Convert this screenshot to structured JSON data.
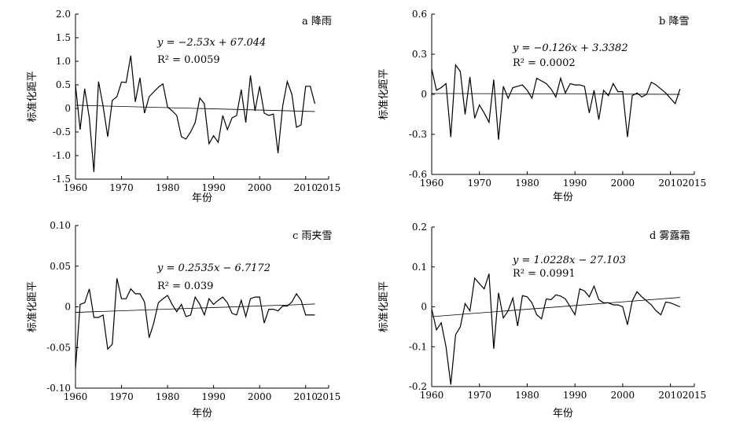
{
  "chart_data": [
    {
      "type": "line",
      "panel_label": "a",
      "title": "降雨",
      "xlabel": "年份",
      "ylabel": "标准化距平",
      "xlim": [
        1960,
        2015
      ],
      "ylim": [
        -1.5,
        2.0
      ],
      "xticks": [
        "1960",
        "1970",
        "1980",
        "1990",
        "2000",
        "2010",
        "2015"
      ],
      "yticks": [
        "2.0",
        "1.5",
        "1.0",
        "0.5",
        "0",
        "-0.5",
        "-1.0",
        "-1.5"
      ],
      "equation": "y = −2.53x + 67.044",
      "r2": "R² = 0.0059",
      "trend": {
        "slope": -2.53,
        "intercept": 67.044
      },
      "x": [
        1960,
        1961,
        1962,
        1963,
        1964,
        1965,
        1966,
        1967,
        1968,
        1969,
        1970,
        1971,
        1972,
        1973,
        1974,
        1975,
        1976,
        1977,
        1978,
        1979,
        1980,
        1981,
        1982,
        1983,
        1984,
        1985,
        1986,
        1987,
        1988,
        1989,
        1990,
        1991,
        1992,
        1993,
        1994,
        1995,
        1996,
        1997,
        1998,
        1999,
        2000,
        2001,
        2002,
        2003,
        2004,
        2005,
        2006,
        2007,
        2008,
        2009,
        2010,
        2011,
        2012
      ],
      "values": [
        0.5,
        -0.45,
        0.42,
        -0.2,
        -1.35,
        0.57,
        0.05,
        -0.6,
        0.17,
        0.25,
        0.56,
        0.55,
        1.12,
        0.14,
        0.65,
        -0.1,
        0.25,
        0.35,
        0.45,
        0.52,
        0.03,
        -0.05,
        -0.15,
        -0.6,
        -0.65,
        -0.5,
        -0.3,
        0.22,
        0.1,
        -0.75,
        -0.58,
        -0.72,
        -0.15,
        -0.45,
        -0.2,
        -0.15,
        0.4,
        -0.3,
        0.7,
        -0.05,
        0.47,
        -0.1,
        -0.15,
        -0.12,
        -0.95,
        0.05,
        0.57,
        0.3,
        -0.4,
        -0.35,
        0.47,
        0.47,
        0.1
      ]
    },
    {
      "type": "line",
      "panel_label": "b",
      "title": "降雪",
      "xlabel": "年份",
      "ylabel": "标准化距平",
      "xlim": [
        1960,
        2015
      ],
      "ylim": [
        -0.6,
        0.6
      ],
      "xticks": [
        "1960",
        "1970",
        "1980",
        "1990",
        "2000",
        "2010",
        "2015"
      ],
      "yticks": [
        "0.6",
        "0.3",
        "0",
        "-0.3",
        "-0.6"
      ],
      "equation": "y = −0.126x + 3.3382",
      "r2": "R² = 0.0002",
      "trend": {
        "slope": -0.126,
        "intercept": 3.3382
      },
      "x": [
        1960,
        1961,
        1962,
        1963,
        1964,
        1965,
        1966,
        1967,
        1968,
        1969,
        1970,
        1971,
        1972,
        1973,
        1974,
        1975,
        1976,
        1977,
        1978,
        1979,
        1980,
        1981,
        1982,
        1983,
        1984,
        1985,
        1986,
        1987,
        1988,
        1989,
        1990,
        1991,
        1992,
        1993,
        1994,
        1995,
        1996,
        1997,
        1998,
        1999,
        2000,
        2001,
        2002,
        2003,
        2004,
        2005,
        2006,
        2007,
        2008,
        2009,
        2010,
        2011,
        2012
      ],
      "values": [
        0.19,
        0.03,
        0.05,
        0.08,
        -0.32,
        0.22,
        0.17,
        -0.15,
        0.13,
        -0.18,
        -0.08,
        -0.14,
        -0.21,
        0.11,
        -0.34,
        0.06,
        -0.03,
        0.05,
        0.06,
        0.07,
        0.03,
        -0.03,
        0.12,
        0.1,
        0.08,
        0.04,
        -0.02,
        0.12,
        0.01,
        0.08,
        0.07,
        0.07,
        0.06,
        -0.14,
        0.03,
        -0.19,
        0.03,
        -0.01,
        0.08,
        0.02,
        0.02,
        -0.32,
        -0.01,
        0.01,
        -0.02,
        0.0,
        0.09,
        0.07,
        0.04,
        0.01,
        -0.03,
        -0.07,
        0.04
      ]
    },
    {
      "type": "line",
      "panel_label": "c",
      "title": "雨夹雪",
      "xlabel": "年份",
      "ylabel": "标准化距平",
      "xlim": [
        1960,
        2015
      ],
      "ylim": [
        -0.1,
        0.1
      ],
      "xticks": [
        "1960",
        "1970",
        "1980",
        "1990",
        "2000",
        "2010",
        "2015"
      ],
      "yticks": [
        "0.10",
        "0.05",
        "0",
        "-0.05",
        "-0.10"
      ],
      "equation": "y = 0.2535x − 6.7172",
      "r2": "R² = 0.039",
      "trend": {
        "slope": 0.2535,
        "intercept": -6.7172
      },
      "x": [
        1960,
        1961,
        1962,
        1963,
        1964,
        1965,
        1966,
        1967,
        1968,
        1969,
        1970,
        1971,
        1972,
        1973,
        1974,
        1975,
        1976,
        1977,
        1978,
        1979,
        1980,
        1981,
        1982,
        1983,
        1984,
        1985,
        1986,
        1987,
        1988,
        1989,
        1990,
        1991,
        1992,
        1993,
        1994,
        1995,
        1996,
        1997,
        1998,
        1999,
        2000,
        2001,
        2002,
        2003,
        2004,
        2005,
        2006,
        2007,
        2008,
        2009,
        2010,
        2011,
        2012
      ],
      "values": [
        -0.076,
        0.003,
        0.005,
        0.022,
        -0.013,
        -0.013,
        -0.01,
        -0.052,
        -0.046,
        0.035,
        0.01,
        0.01,
        0.022,
        0.016,
        0.016,
        0.006,
        -0.038,
        -0.02,
        0.005,
        0.01,
        0.014,
        0.003,
        -0.006,
        0.003,
        -0.012,
        -0.01,
        0.012,
        0.003,
        -0.01,
        0.01,
        0.003,
        0.008,
        0.012,
        0.005,
        -0.008,
        -0.01,
        0.008,
        -0.012,
        0.01,
        0.012,
        0.012,
        -0.02,
        -0.003,
        -0.003,
        -0.005,
        0.001,
        0.001,
        0.006,
        0.016,
        0.008,
        -0.01,
        -0.01,
        -0.01
      ]
    },
    {
      "type": "line",
      "panel_label": "d",
      "title": "雾露霜",
      "xlabel": "年份",
      "ylabel": "标准化距平",
      "xlim": [
        1960,
        2015
      ],
      "ylim": [
        -0.2,
        0.2
      ],
      "xticks": [
        "1960",
        "1970",
        "1980",
        "1990",
        "2000",
        "2010",
        "2015"
      ],
      "yticks": [
        "0.2",
        "0.1",
        "0",
        "-0.1",
        "-0.2"
      ],
      "equation": "y = 1.0228x − 27.103",
      "r2": "R² = 0.0991",
      "trend": {
        "slope": 1.0228,
        "intercept": -27.103
      },
      "x": [
        1960,
        1961,
        1962,
        1963,
        1964,
        1965,
        1966,
        1967,
        1968,
        1969,
        1970,
        1971,
        1972,
        1973,
        1974,
        1975,
        1976,
        1977,
        1978,
        1979,
        1980,
        1981,
        1982,
        1983,
        1984,
        1985,
        1986,
        1987,
        1988,
        1989,
        1990,
        1991,
        1992,
        1993,
        1994,
        1995,
        1996,
        1997,
        1998,
        1999,
        2000,
        2001,
        2002,
        2003,
        2004,
        2005,
        2006,
        2007,
        2008,
        2009,
        2010,
        2011,
        2012
      ],
      "values": [
        -0.005,
        -0.058,
        -0.04,
        -0.1,
        -0.195,
        -0.07,
        -0.05,
        0.008,
        -0.01,
        0.072,
        0.058,
        0.045,
        0.083,
        -0.105,
        0.035,
        -0.028,
        -0.01,
        0.022,
        -0.048,
        0.028,
        0.025,
        0.01,
        -0.02,
        -0.03,
        0.02,
        0.018,
        0.03,
        0.027,
        0.02,
        0.0,
        -0.02,
        0.045,
        0.04,
        0.025,
        0.052,
        0.018,
        0.01,
        0.01,
        0.005,
        0.005,
        0.0,
        -0.045,
        0.015,
        0.038,
        0.025,
        0.015,
        0.005,
        -0.01,
        -0.02,
        0.012,
        0.01,
        0.005,
        0.0
      ]
    }
  ]
}
